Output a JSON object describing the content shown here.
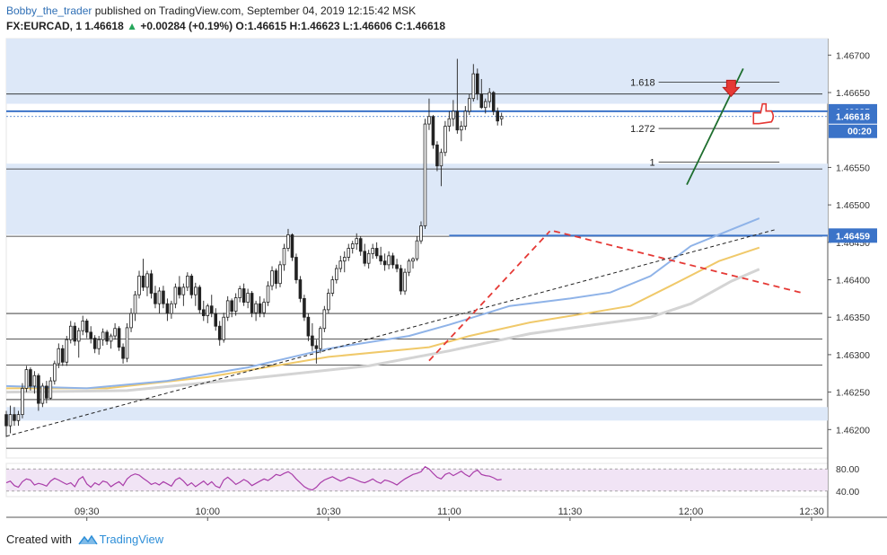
{
  "header": {
    "author": "Bobby_the_trader",
    "published_text": " published on TradingView.com, September 04, 2019 12:15:42 MSK",
    "symbol": "FX:EURCAD, 1",
    "last": "1.46618",
    "change_arrow": "▲",
    "change": "+0.00284 (+0.19%)",
    "o_label": "O:",
    "o_value": "1.46615",
    "h_label": "H:",
    "h_value": "1.46623",
    "l_label": "L:",
    "l_value": "1.46606",
    "c_label": "C:",
    "c_value": "1.46618"
  },
  "footer": {
    "created_with": "Created with",
    "brand": "TradingView"
  },
  "colors": {
    "up": "#26a65b",
    "price_tag": "#3b73c8",
    "zone_fill": "#dde8f8",
    "ema_blue": "#8fb3e8",
    "ema_orange": "#f0c96a",
    "ema_gray": "#d4d4d4",
    "trend_red": "#e53935",
    "trend_green": "#1e6e2e",
    "rsi_line": "#a93ca9",
    "rsi_band": "#f1e4f5"
  },
  "chart_data": {
    "type": "candlestick",
    "x_ticks": [
      "09:30",
      "10:00",
      "10:30",
      "11:00",
      "11:30",
      "12:00",
      "12:30"
    ],
    "x_tick_minutes": [
      570,
      600,
      630,
      660,
      690,
      720,
      750
    ],
    "y_ticks": [
      "1.46700",
      "1.46650",
      "1.46550",
      "1.46500",
      "1.46450",
      "1.46400",
      "1.46350",
      "1.46300",
      "1.46250",
      "1.46200"
    ],
    "y_tick_values": [
      1.467,
      1.4665,
      1.4655,
      1.465,
      1.4645,
      1.464,
      1.4635,
      1.463,
      1.4625,
      1.462
    ],
    "ylim": [
      1.46162,
      1.46722
    ],
    "xlim_minutes": [
      550,
      754
    ],
    "price_labels": [
      {
        "value": 1.46625,
        "text": "1.46625"
      },
      {
        "value": 1.46618,
        "text": "1.46618"
      },
      {
        "value": 1.46459,
        "text": "1.46459"
      }
    ],
    "countdown": "00:20",
    "fib_levels": [
      {
        "label": "1.618",
        "value": 1.46664
      },
      {
        "label": "1.272",
        "value": 1.46602
      },
      {
        "label": "1",
        "value": 1.46557
      }
    ],
    "horizontal_levels": [
      1.46648,
      1.46625,
      1.46548,
      1.46458,
      1.46355,
      1.46321,
      1.46286,
      1.4624,
      1.46175
    ],
    "zones": [
      [
        1.46635,
        1.46722
      ],
      [
        1.4646,
        1.46555
      ],
      [
        1.46212,
        1.4623
      ]
    ],
    "candles_1min": [
      [
        1.4622,
        1.46225,
        1.4619,
        1.46205
      ],
      [
        1.46205,
        1.46232,
        1.46195,
        1.4622
      ],
      [
        1.4622,
        1.4623,
        1.46205,
        1.46212
      ],
      [
        1.46212,
        1.46225,
        1.46205,
        1.4622
      ],
      [
        1.4622,
        1.46262,
        1.46215,
        1.46255
      ],
      [
        1.46255,
        1.46285,
        1.4625,
        1.4628
      ],
      [
        1.4628,
        1.46283,
        1.46252,
        1.46258
      ],
      [
        1.46258,
        1.46278,
        1.46248,
        1.46272
      ],
      [
        1.46272,
        1.46275,
        1.46225,
        1.46235
      ],
      [
        1.46235,
        1.46262,
        1.4623,
        1.46258
      ],
      [
        1.46258,
        1.46265,
        1.46235,
        1.46242
      ],
      [
        1.46242,
        1.4627,
        1.4624,
        1.46265
      ],
      [
        1.46265,
        1.46292,
        1.4626,
        1.46288
      ],
      [
        1.46288,
        1.46315,
        1.46282,
        1.46308
      ],
      [
        1.46308,
        1.46313,
        1.46285,
        1.4629
      ],
      [
        1.4629,
        1.46325,
        1.46285,
        1.4632
      ],
      [
        1.4632,
        1.46345,
        1.46315,
        1.46338
      ],
      [
        1.46338,
        1.46343,
        1.46312,
        1.46318
      ],
      [
        1.46318,
        1.46336,
        1.46296,
        1.46332
      ],
      [
        1.46332,
        1.46352,
        1.46326,
        1.46345
      ],
      [
        1.46345,
        1.46348,
        1.46322,
        1.4633
      ],
      [
        1.4633,
        1.46338,
        1.46315,
        1.46322
      ],
      [
        1.46322,
        1.46326,
        1.46302,
        1.46308
      ],
      [
        1.46308,
        1.46325,
        1.463,
        1.4632
      ],
      [
        1.4632,
        1.46335,
        1.46312,
        1.4633
      ],
      [
        1.4633,
        1.46333,
        1.46313,
        1.46318
      ],
      [
        1.46318,
        1.46328,
        1.46308,
        1.46325
      ],
      [
        1.46325,
        1.46342,
        1.4632,
        1.46335
      ],
      [
        1.46335,
        1.46338,
        1.46305,
        1.4631
      ],
      [
        1.4631,
        1.46315,
        1.46288,
        1.46295
      ],
      [
        1.46295,
        1.46342,
        1.4629,
        1.46336
      ],
      [
        1.46336,
        1.46362,
        1.4633,
        1.46355
      ],
      [
        1.46355,
        1.46385,
        1.46345,
        1.4638
      ],
      [
        1.4638,
        1.46412,
        1.46375,
        1.46405
      ],
      [
        1.46405,
        1.46428,
        1.46385,
        1.4639
      ],
      [
        1.4639,
        1.46412,
        1.46378,
        1.46408
      ],
      [
        1.46408,
        1.46413,
        1.46375,
        1.46382
      ],
      [
        1.46382,
        1.46392,
        1.46362,
        1.46368
      ],
      [
        1.46368,
        1.4639,
        1.46355,
        1.46385
      ],
      [
        1.46385,
        1.46392,
        1.46362,
        1.46368
      ],
      [
        1.46368,
        1.46375,
        1.46345,
        1.46355
      ],
      [
        1.46355,
        1.46372,
        1.46348,
        1.46368
      ],
      [
        1.46368,
        1.46395,
        1.46362,
        1.4639
      ],
      [
        1.4639,
        1.46405,
        1.46375,
        1.4638
      ],
      [
        1.4638,
        1.46395,
        1.46365,
        1.4639
      ],
      [
        1.4639,
        1.4641,
        1.46385,
        1.46405
      ],
      [
        1.46405,
        1.46408,
        1.46375,
        1.4638
      ],
      [
        1.4638,
        1.46396,
        1.46365,
        1.4639
      ],
      [
        1.4639,
        1.46393,
        1.46355,
        1.4636
      ],
      [
        1.4636,
        1.46372,
        1.46345,
        1.46352
      ],
      [
        1.46352,
        1.46368,
        1.46342,
        1.46365
      ],
      [
        1.46365,
        1.4638,
        1.4635,
        1.46355
      ],
      [
        1.46355,
        1.46362,
        1.46332,
        1.46338
      ],
      [
        1.46338,
        1.46345,
        1.46312,
        1.4632
      ],
      [
        1.4632,
        1.46356,
        1.46316,
        1.4635
      ],
      [
        1.4635,
        1.46378,
        1.46345,
        1.46372
      ],
      [
        1.46372,
        1.46375,
        1.4635,
        1.46358
      ],
      [
        1.46358,
        1.46382,
        1.46352,
        1.46376
      ],
      [
        1.46376,
        1.46392,
        1.4637,
        1.46388
      ],
      [
        1.46388,
        1.46395,
        1.46365,
        1.4637
      ],
      [
        1.4637,
        1.46388,
        1.46362,
        1.46382
      ],
      [
        1.46382,
        1.46385,
        1.4635,
        1.46356
      ],
      [
        1.46356,
        1.46372,
        1.46345,
        1.46368
      ],
      [
        1.46368,
        1.46378,
        1.4635,
        1.46356
      ],
      [
        1.46356,
        1.46375,
        1.4635,
        1.4637
      ],
      [
        1.4637,
        1.46398,
        1.46365,
        1.46392
      ],
      [
        1.46392,
        1.46418,
        1.46386,
        1.46412
      ],
      [
        1.46412,
        1.46415,
        1.46388,
        1.46395
      ],
      [
        1.46395,
        1.46425,
        1.4639,
        1.4642
      ],
      [
        1.4642,
        1.46448,
        1.46412,
        1.46442
      ],
      [
        1.46442,
        1.46468,
        1.46438,
        1.4646
      ],
      [
        1.4646,
        1.46462,
        1.46425,
        1.4643
      ],
      [
        1.4643,
        1.46435,
        1.46395,
        1.464
      ],
      [
        1.464,
        1.46405,
        1.4637,
        1.46375
      ],
      [
        1.46375,
        1.4638,
        1.46345,
        1.4635
      ],
      [
        1.4635,
        1.46355,
        1.46318,
        1.46325
      ],
      [
        1.46325,
        1.46342,
        1.46305,
        1.46312
      ],
      [
        1.46312,
        1.4632,
        1.46288,
        1.46308
      ],
      [
        1.46308,
        1.46338,
        1.46302,
        1.46335
      ],
      [
        1.46335,
        1.46365,
        1.4633,
        1.4636
      ],
      [
        1.4636,
        1.46388,
        1.46355,
        1.46382
      ],
      [
        1.46382,
        1.46405,
        1.46378,
        1.464
      ],
      [
        1.464,
        1.4642,
        1.46395,
        1.46415
      ],
      [
        1.46415,
        1.46432,
        1.4641,
        1.46425
      ],
      [
        1.46425,
        1.46438,
        1.4641,
        1.4643
      ],
      [
        1.4643,
        1.46448,
        1.46425,
        1.46442
      ],
      [
        1.46442,
        1.46452,
        1.46435,
        1.46448
      ],
      [
        1.46448,
        1.46462,
        1.4644,
        1.46455
      ],
      [
        1.46455,
        1.46458,
        1.46432,
        1.46438
      ],
      [
        1.46438,
        1.46448,
        1.46418,
        1.46422
      ],
      [
        1.46422,
        1.4644,
        1.46415,
        1.46435
      ],
      [
        1.46435,
        1.46448,
        1.46428,
        1.46442
      ],
      [
        1.46442,
        1.4645,
        1.46428,
        1.46432
      ],
      [
        1.46432,
        1.46444,
        1.4642,
        1.46425
      ],
      [
        1.46425,
        1.46435,
        1.46412,
        1.4642
      ],
      [
        1.4642,
        1.46438,
        1.46414,
        1.46432
      ],
      [
        1.46432,
        1.46436,
        1.46415,
        1.4642
      ],
      [
        1.4642,
        1.46428,
        1.4641,
        1.46415
      ],
      [
        1.46415,
        1.4642,
        1.4638,
        1.46385
      ],
      [
        1.46385,
        1.46415,
        1.4638,
        1.4641
      ],
      [
        1.4641,
        1.46428,
        1.46405,
        1.46425
      ],
      [
        1.46425,
        1.4643,
        1.46415,
        1.46428
      ],
      [
        1.46428,
        1.46458,
        1.46425,
        1.46452
      ],
      [
        1.46452,
        1.46478,
        1.46448,
        1.46472
      ],
      [
        1.46472,
        1.46615,
        1.46468,
        1.46608
      ],
      [
        1.46608,
        1.46642,
        1.466,
        1.46618
      ],
      [
        1.46618,
        1.4662,
        1.46575,
        1.4658
      ],
      [
        1.4658,
        1.46585,
        1.46545,
        1.46552
      ],
      [
        1.46552,
        1.46575,
        1.46525,
        1.4657
      ],
      [
        1.4657,
        1.46612,
        1.46565,
        1.46605
      ],
      [
        1.46605,
        1.46625,
        1.46598,
        1.46615
      ],
      [
        1.46615,
        1.4664,
        1.46605,
        1.46625
      ],
      [
        1.46625,
        1.46695,
        1.46595,
        1.466
      ],
      [
        1.466,
        1.46612,
        1.46585,
        1.46605
      ],
      [
        1.46605,
        1.46632,
        1.466,
        1.46625
      ],
      [
        1.46625,
        1.46648,
        1.4662,
        1.46642
      ],
      [
        1.46642,
        1.46688,
        1.46638,
        1.46675
      ],
      [
        1.46675,
        1.46682,
        1.4664,
        1.46648
      ],
      [
        1.46648,
        1.46668,
        1.46628,
        1.4663
      ],
      [
        1.4663,
        1.46642,
        1.46622,
        1.46638
      ],
      [
        1.46638,
        1.46656,
        1.4663,
        1.4665
      ],
      [
        1.4665,
        1.46652,
        1.4662,
        1.46625
      ],
      [
        1.46625,
        1.4663,
        1.46606,
        1.46612
      ],
      [
        1.46615,
        1.46623,
        1.46606,
        1.46618
      ]
    ],
    "ema_blue": [
      [
        550,
        1.46258
      ],
      [
        570,
        1.46255
      ],
      [
        590,
        1.46265
      ],
      [
        610,
        1.46283
      ],
      [
        630,
        1.46308
      ],
      [
        650,
        1.46325
      ],
      [
        660,
        1.4634
      ],
      [
        675,
        1.46365
      ],
      [
        690,
        1.46375
      ],
      [
        700,
        1.46383
      ],
      [
        710,
        1.46405
      ],
      [
        720,
        1.46445
      ],
      [
        730,
        1.46467
      ],
      [
        737,
        1.46482
      ]
    ],
    "ema_orange": [
      [
        550,
        1.46255
      ],
      [
        575,
        1.46255
      ],
      [
        600,
        1.4627
      ],
      [
        630,
        1.46297
      ],
      [
        655,
        1.4631
      ],
      [
        665,
        1.46325
      ],
      [
        680,
        1.46343
      ],
      [
        695,
        1.46356
      ],
      [
        705,
        1.46365
      ],
      [
        715,
        1.46392
      ],
      [
        727,
        1.46425
      ],
      [
        737,
        1.46443
      ]
    ],
    "ema_gray": [
      [
        550,
        1.4625
      ],
      [
        580,
        1.46252
      ],
      [
        610,
        1.46268
      ],
      [
        640,
        1.46285
      ],
      [
        660,
        1.46305
      ],
      [
        680,
        1.46328
      ],
      [
        700,
        1.46343
      ],
      [
        710,
        1.4635
      ],
      [
        720,
        1.46368
      ],
      [
        730,
        1.46398
      ],
      [
        737,
        1.46414
      ]
    ],
    "trendlines": [
      {
        "style": "dashed-black",
        "from": [
          550,
          1.46191
        ],
        "to": [
          741,
          1.46467
        ]
      },
      {
        "style": "dashed-red",
        "from": [
          655,
          1.46292
        ],
        "to": [
          685,
          1.46465
        ]
      },
      {
        "style": "dashed-red",
        "from": [
          686,
          1.46465
        ],
        "to": [
          748,
          1.46382
        ]
      },
      {
        "style": "solid-green",
        "from": [
          719,
          1.46527
        ],
        "to": [
          733,
          1.46682
        ]
      }
    ],
    "markers": [
      {
        "shape": "arrow-down",
        "minute": 730,
        "value": 1.46652,
        "color": "#e53935"
      },
      {
        "shape": "hand",
        "minute": 736,
        "value": 1.46618,
        "color": "#e53935"
      }
    ],
    "rsi": {
      "ticks": [
        "80.00",
        "40.00"
      ],
      "tick_values": [
        80,
        40
      ],
      "ylim": [
        30,
        90
      ],
      "band": [
        40,
        80
      ],
      "values": [
        55,
        58,
        50,
        47,
        57,
        62,
        60,
        51,
        54,
        52,
        49,
        58,
        63,
        60,
        56,
        52,
        55,
        48,
        61,
        66,
        53,
        47,
        55,
        51,
        58,
        56,
        48,
        53,
        57,
        50,
        62,
        68,
        71,
        69,
        63,
        58,
        52,
        55,
        51,
        57,
        53,
        49,
        60,
        64,
        58,
        50,
        55,
        48,
        53,
        58,
        51,
        57,
        49,
        46,
        60,
        65,
        59,
        52,
        56,
        61,
        57,
        50,
        54,
        58,
        62,
        59,
        64,
        70,
        68,
        72,
        75,
        70,
        62,
        55,
        48,
        44,
        42,
        47,
        55,
        60,
        63,
        66,
        62,
        58,
        61,
        65,
        63,
        60,
        57,
        55,
        58,
        62,
        57,
        54,
        60,
        58,
        55,
        51,
        57,
        62,
        66,
        70,
        72,
        75,
        84,
        80,
        72,
        65,
        62,
        70,
        73,
        68,
        72,
        76,
        70,
        66,
        74,
        78,
        70,
        68,
        67,
        64,
        60,
        61
      ]
    }
  }
}
